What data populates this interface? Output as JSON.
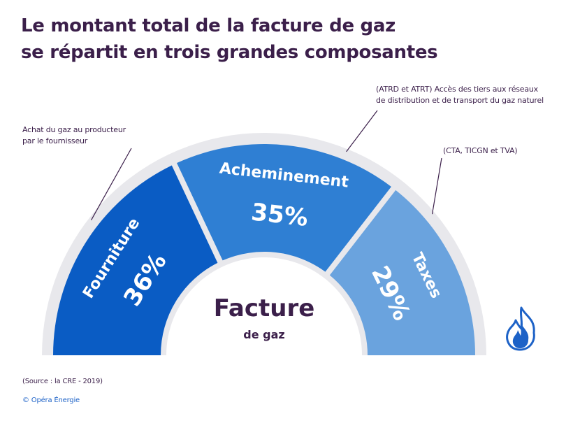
{
  "title": {
    "line1": "Le montant total de la facture de gaz",
    "line2": "se répartit en trois grandes composantes"
  },
  "chart_data": {
    "type": "pie",
    "title": "Le montant total de la facture de gaz se répartit en trois grandes composantes",
    "center_label": {
      "main": "Facture",
      "sub": "de gaz"
    },
    "segments": [
      {
        "name": "Fourniture",
        "value": 36,
        "label": "36%",
        "color": "#0a5cc4",
        "note_lines": [
          "Achat du gaz au producteur",
          "par le fournisseur"
        ]
      },
      {
        "name": "Acheminement",
        "value": 35,
        "label": "35%",
        "color": "#2f7fd3",
        "note_lines": [
          "(ATRD et ATRT) Accès des tiers aux réseaux",
          "de distribution et de transport du gaz naturel"
        ]
      },
      {
        "name": "Taxes",
        "value": 29,
        "label": "29%",
        "color": "#6aa3de",
        "note_lines": [
          "(CTA, TICGN et TVA)"
        ]
      }
    ]
  },
  "footer": {
    "source": "(Source : la CRE - 2019)",
    "copyright": "© Opéra Énergie"
  },
  "colors": {
    "text": "#3b1f4a",
    "ring_gray": "#e8e8ec",
    "flame_blue": "#1d62c7"
  },
  "icons": {
    "flame": "flame-icon"
  }
}
